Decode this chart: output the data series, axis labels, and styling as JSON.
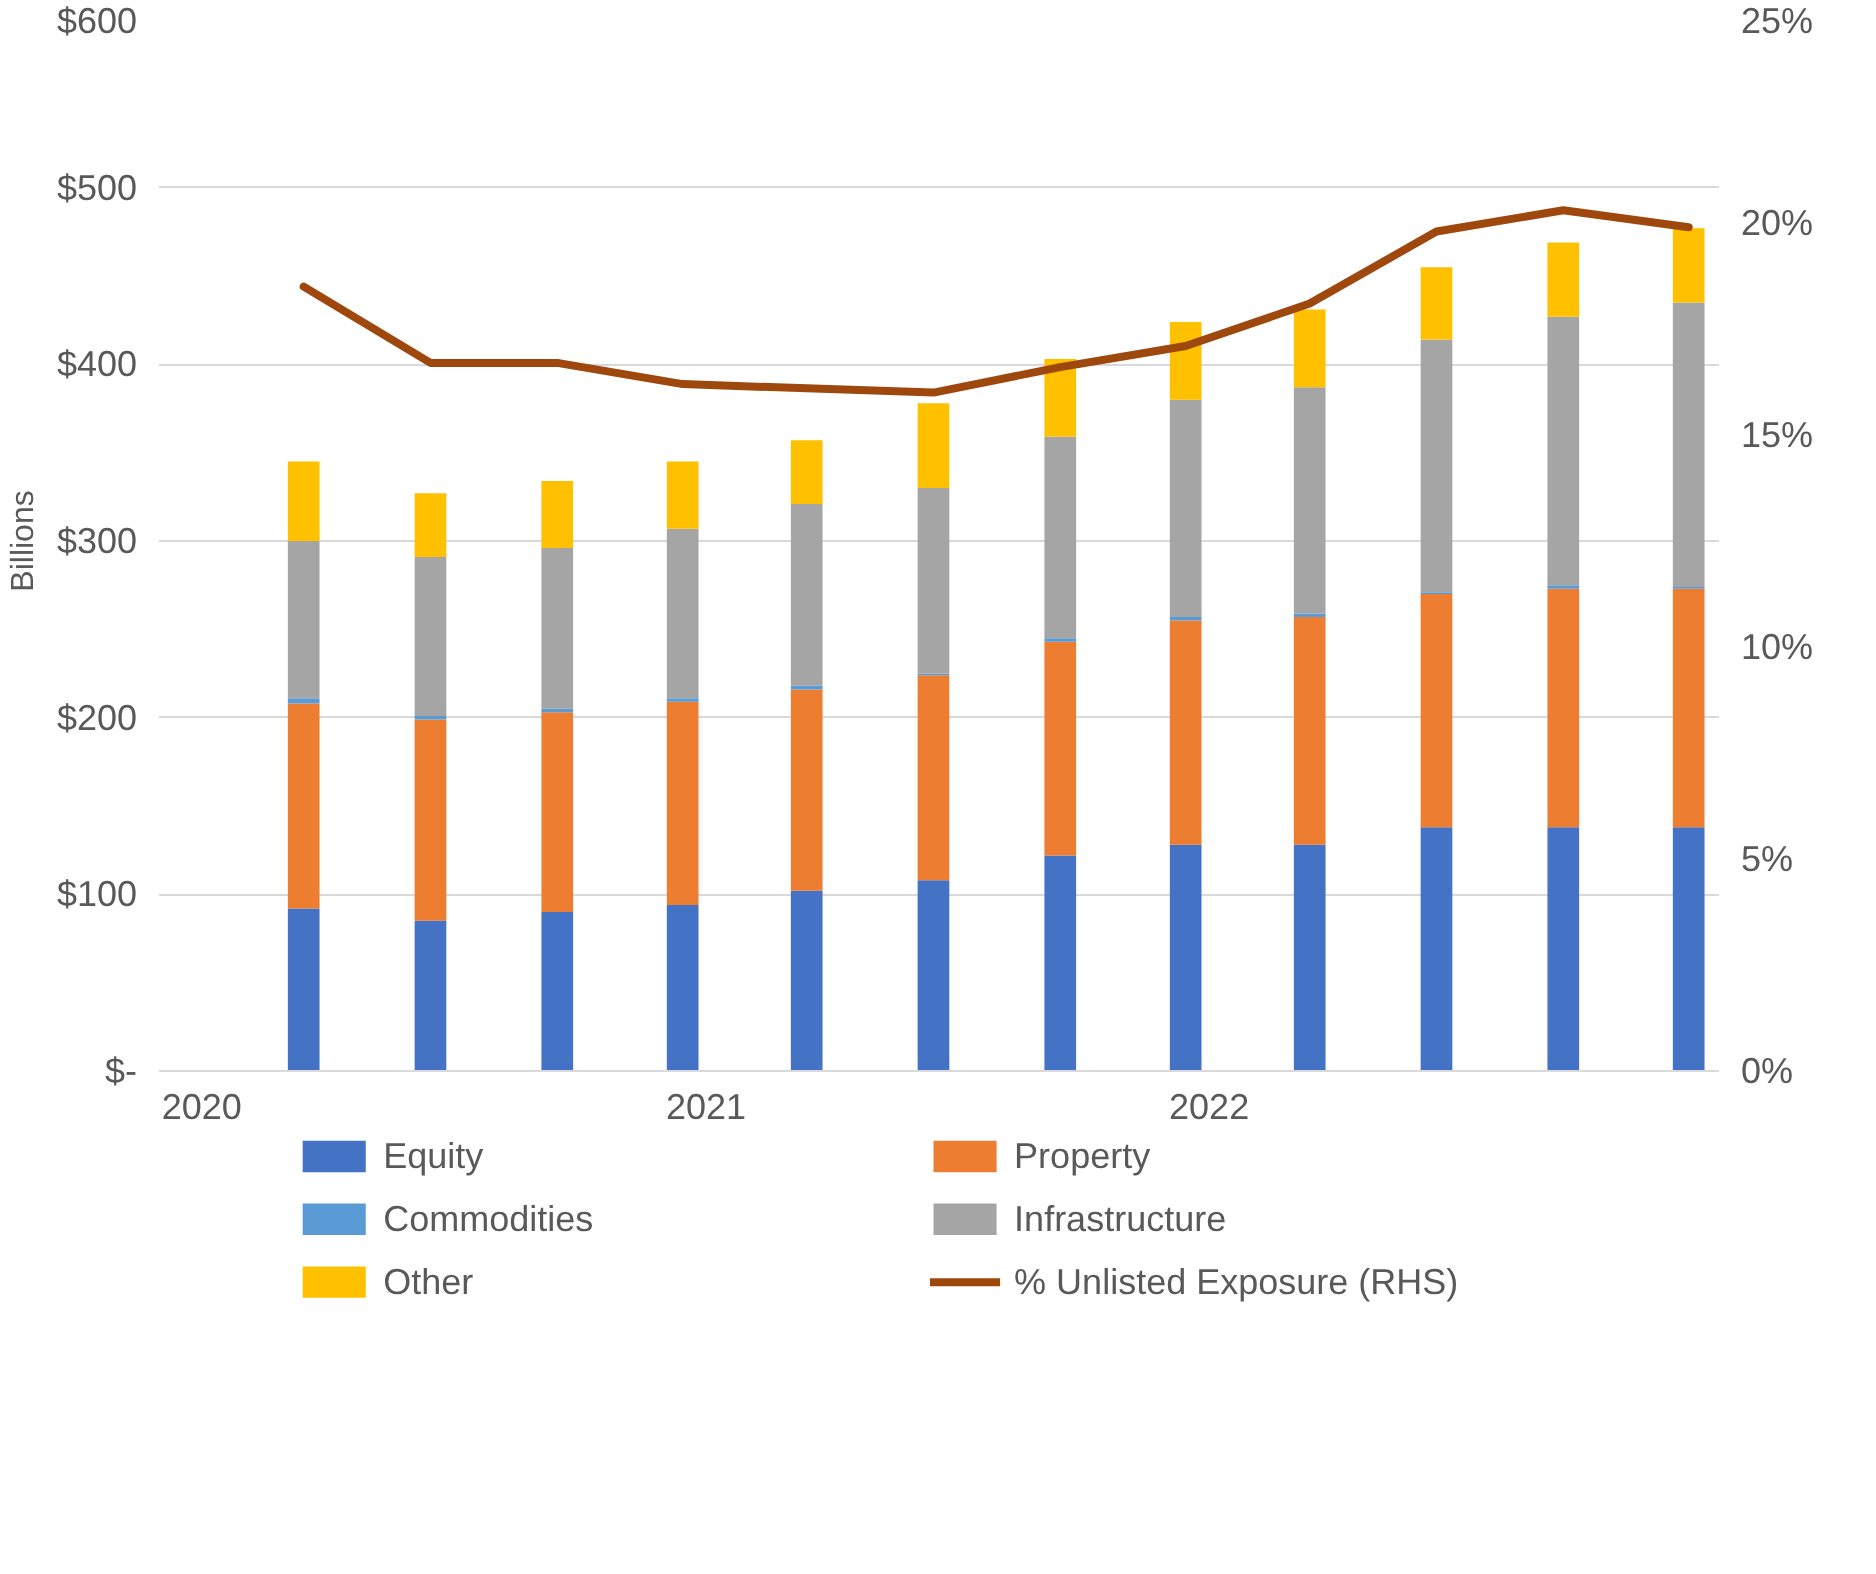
{
  "chart_data": {
    "type": "bar",
    "stacked": true,
    "ylabel": "Billions",
    "x": [
      "2020-03-15",
      "2020-06-15",
      "2020-09-15",
      "2020-12-15",
      "2021-03-15",
      "2021-06-15",
      "2021-09-15",
      "2021-12-15",
      "2022-03-15",
      "2022-06-15",
      "2022-09-15",
      "2022-12-15"
    ],
    "xlim": [
      "2019-12-01",
      "2023-01-06"
    ],
    "xticks": [
      {
        "value": "2020-01-01",
        "label": "2020"
      },
      {
        "value": "2021-01-01",
        "label": "2021"
      },
      {
        "value": "2022-01-01",
        "label": "2022"
      }
    ],
    "ylim": [
      0,
      600
    ],
    "yticks": [
      {
        "value": 0,
        "label": "$-"
      },
      {
        "value": 100,
        "label": "$100"
      },
      {
        "value": 200,
        "label": "$200"
      },
      {
        "value": 300,
        "label": "$300"
      },
      {
        "value": 400,
        "label": "$400"
      },
      {
        "value": 500,
        "label": "$500"
      },
      {
        "value": 600,
        "label": "$600"
      }
    ],
    "y2lim": [
      0,
      25
    ],
    "y2ticks": [
      {
        "value": 0,
        "label": "0%"
      },
      {
        "value": 5,
        "label": "5%"
      },
      {
        "value": 10,
        "label": "10%"
      },
      {
        "value": 15,
        "label": "15%"
      },
      {
        "value": 20,
        "label": "20%"
      },
      {
        "value": 25,
        "label": "25%"
      }
    ],
    "series": [
      {
        "name": "Equity",
        "color": "#4472c4",
        "values": [
          92,
          85,
          90,
          94,
          102,
          108,
          122,
          128,
          128,
          138,
          138,
          138
        ]
      },
      {
        "name": "Property",
        "color": "#ed7d31",
        "values": [
          116,
          114,
          113,
          115,
          114,
          116,
          121,
          127,
          129,
          132,
          135,
          135
        ]
      },
      {
        "name": "Commodities",
        "color": "#5b9bd5",
        "values": [
          3,
          2,
          2,
          2,
          2,
          1,
          2,
          2,
          2,
          1,
          2,
          1
        ]
      },
      {
        "name": "Infrastructure",
        "color": "#a5a5a5",
        "values": [
          89,
          90,
          91,
          96,
          103,
          105,
          114,
          123,
          128,
          143,
          152,
          161
        ]
      },
      {
        "name": "Other",
        "color": "#ffc000",
        "values": [
          45,
          36,
          38,
          38,
          36,
          48,
          44,
          44,
          44,
          41,
          42,
          42
        ]
      },
      {
        "name": "% Unlisted Exposure (RHS)",
        "type": "line",
        "axis": "y2",
        "color": "#9e480e",
        "values": [
          18.5,
          16.7,
          16.7,
          16.2,
          16.1,
          16.0,
          16.6,
          17.1,
          18.1,
          19.8,
          20.3,
          19.9
        ]
      }
    ],
    "grid": "y",
    "legend": "bottom"
  }
}
